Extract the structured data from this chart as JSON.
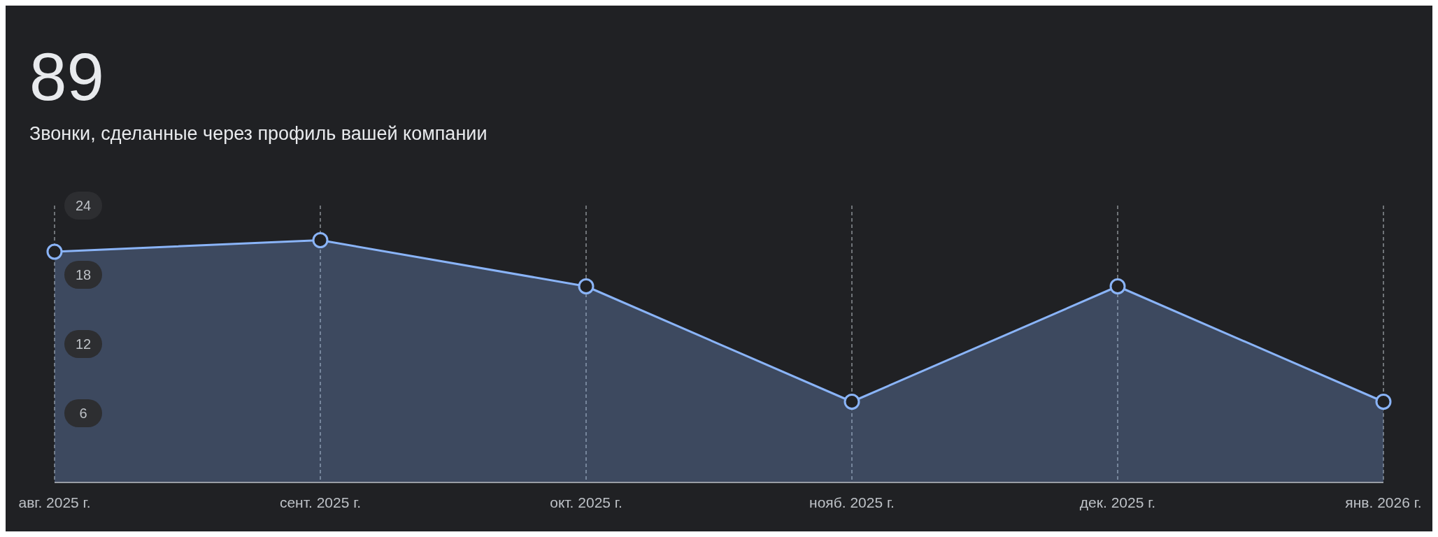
{
  "chart_data": {
    "type": "area",
    "title": "89",
    "subtitle": "Звонки, сделанные через профиль вашей компании",
    "categories": [
      "авг. 2025 г.",
      "сент. 2025 г.",
      "окт. 2025 г.",
      "нояб. 2025 г.",
      "дек. 2025 г.",
      "янв. 2026 г."
    ],
    "series": [
      {
        "color": "#8ab4f8",
        "values": [
          20,
          21,
          17,
          7,
          17,
          7
        ]
      }
    ],
    "ylim": [
      0,
      24
    ],
    "yticks": [
      6,
      12,
      18,
      24
    ],
    "grid": "x",
    "marker": "circle"
  }
}
